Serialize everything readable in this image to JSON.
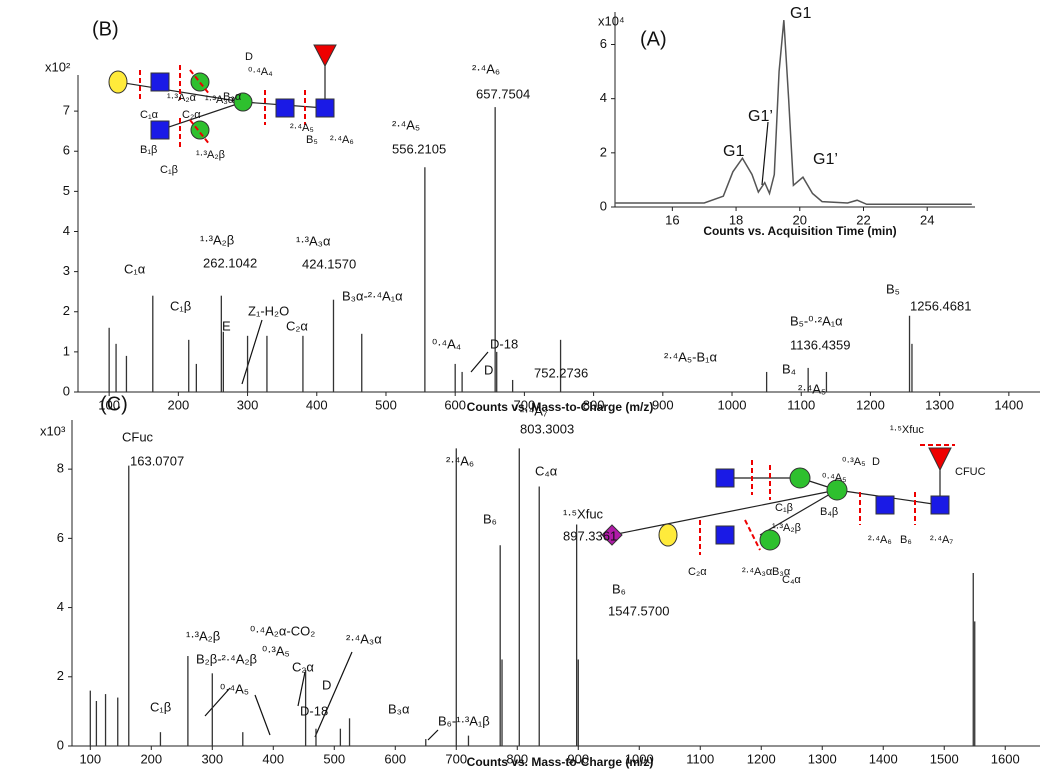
{
  "chart_data": [
    {
      "type": "line",
      "panel_label": "(A)",
      "multiplier": "x10⁴",
      "x_label": "Counts vs. Acquisition Time (min)",
      "x": [
        14.2,
        17.0,
        17.6,
        17.9,
        18.2,
        18.5,
        18.7,
        18.9,
        19.05,
        19.2,
        19.35,
        19.5,
        19.65,
        19.8,
        20.1,
        20.4,
        20.7,
        21.5,
        21.8,
        22.1,
        23.5,
        25.4
      ],
      "values": [
        0.15,
        0.15,
        0.4,
        1.3,
        1.8,
        1.2,
        0.55,
        0.9,
        0.5,
        1.2,
        5.0,
        6.9,
        4.0,
        0.8,
        1.1,
        0.5,
        0.2,
        0.15,
        0.25,
        0.1,
        0.1,
        0.1
      ],
      "color": "#555555",
      "xlim": [
        14.2,
        25.5
      ],
      "ylim": [
        0,
        7.2
      ],
      "xticks": [
        16,
        18,
        20,
        22,
        24
      ],
      "yticks": [
        0,
        2,
        4,
        6
      ],
      "annotations": [
        "G1",
        "G1’",
        "G1",
        "G1’"
      ]
    },
    {
      "type": "stick",
      "panel_label": "(B)",
      "multiplier": "x10²",
      "x_label": "Counts vs. Mass-to-Charge (m/z)",
      "x": [
        100,
        110,
        125,
        163.07,
        215,
        226,
        262.1,
        265,
        300,
        328,
        380,
        424.16,
        465,
        556.21,
        600,
        610,
        657.75,
        660,
        683,
        752.27,
        1050,
        1110,
        1136.44,
        1256.47,
        1260
      ],
      "values": [
        1.6,
        1.2,
        0.9,
        2.4,
        1.3,
        0.7,
        2.4,
        1.5,
        1.4,
        1.4,
        1.4,
        2.3,
        1.45,
        5.6,
        0.7,
        0.5,
        7.1,
        1.0,
        0.3,
        1.3,
        0.5,
        0.6,
        0.5,
        1.9,
        1.2
      ],
      "color": "#333333",
      "xlim": [
        55,
        1445
      ],
      "ylim": [
        0,
        7.9
      ],
      "xticks": [
        100,
        200,
        300,
        400,
        500,
        600,
        700,
        800,
        900,
        1000,
        1100,
        1200,
        1300,
        1400
      ],
      "yticks": [
        0,
        1,
        2,
        3,
        4,
        5,
        6,
        7
      ],
      "annotations": [
        "C₁α",
        "C₁β",
        "¹·³A₂β",
        "262.1042",
        "E",
        "Z₁-H₂O",
        "¹·³A₃α",
        "424.1570",
        "B₃α-²·⁴A₁α",
        "C₂α",
        "²·⁴A₅",
        "556.2105",
        "²·⁴A₆",
        "657.7504",
        "⁰·⁴A₄",
        "D-18",
        "D",
        "752.2736",
        "²·⁴A₅-B₁α",
        "B₄",
        "²·⁴A₅",
        "B₅-⁰·²A₁α",
        "1136.4359",
        "B₅",
        "1256.4681"
      ],
      "glycan_labels": [
        "C₁α",
        "¹·³A₂α",
        "C₂α",
        "¹·³A₃α",
        "B₃α",
        "D",
        "⁰·⁴A₄",
        "B₁β",
        "C₁β",
        "¹·³A₂β",
        "²·⁴A₅",
        "B₅",
        "²·⁴A₆"
      ]
    },
    {
      "type": "stick",
      "panel_label": "(C)",
      "multiplier": "x10³",
      "x_label": "Counts vs. Mass-to-Charge (m/z)",
      "x": [
        100,
        110,
        125,
        145,
        163.07,
        215,
        260,
        300,
        350,
        453,
        470,
        510,
        525,
        650,
        700,
        720,
        772,
        775,
        803.3,
        836,
        897.34,
        900,
        1547.57,
        1550
      ],
      "values": [
        1.6,
        1.3,
        1.5,
        1.4,
        8.1,
        0.4,
        2.6,
        2.1,
        0.4,
        2.2,
        0.5,
        0.5,
        0.8,
        0.2,
        8.6,
        0.3,
        5.8,
        2.5,
        8.6,
        7.5,
        6.4,
        2.5,
        5.0,
        3.6
      ],
      "color": "#333333",
      "xlim": [
        70,
        1657
      ],
      "ylim": [
        0,
        9.42
      ],
      "xticks": [
        100,
        200,
        300,
        400,
        500,
        600,
        700,
        800,
        900,
        1000,
        1100,
        1200,
        1300,
        1400,
        1500,
        1600
      ],
      "yticks": [
        0,
        2,
        4,
        6,
        8
      ],
      "annotations": [
        "CFuc",
        "163.0707",
        "C₁β",
        "¹·³A₂β",
        "B₂β-²·⁴A₂β",
        "⁰·⁴A₂α-CO₂",
        "⁰·³A₅",
        "C₂α",
        "⁰·⁴A₅",
        "D-18",
        "D",
        "²·⁴A₃α",
        "B₃α",
        "B₆-¹·³A₁β",
        "²·⁴A₆",
        "²·⁴A₇",
        "803.3003",
        "C₄α",
        "B₆",
        "¹·⁵Xfuc",
        "897.3361",
        "B₆",
        "1547.5700"
      ],
      "glycan_labels": [
        "⁰·³A₅",
        "D",
        "⁰·⁴A₅",
        "C₁β",
        "¹·³A₂β",
        "B₄β",
        "C₂α",
        "²·⁴A₃α",
        "B₃α",
        "C₄α",
        "²·⁴A₆",
        "B₆",
        "²·⁴A₇",
        "¹·⁵Xfuc",
        "CFUC"
      ]
    }
  ]
}
